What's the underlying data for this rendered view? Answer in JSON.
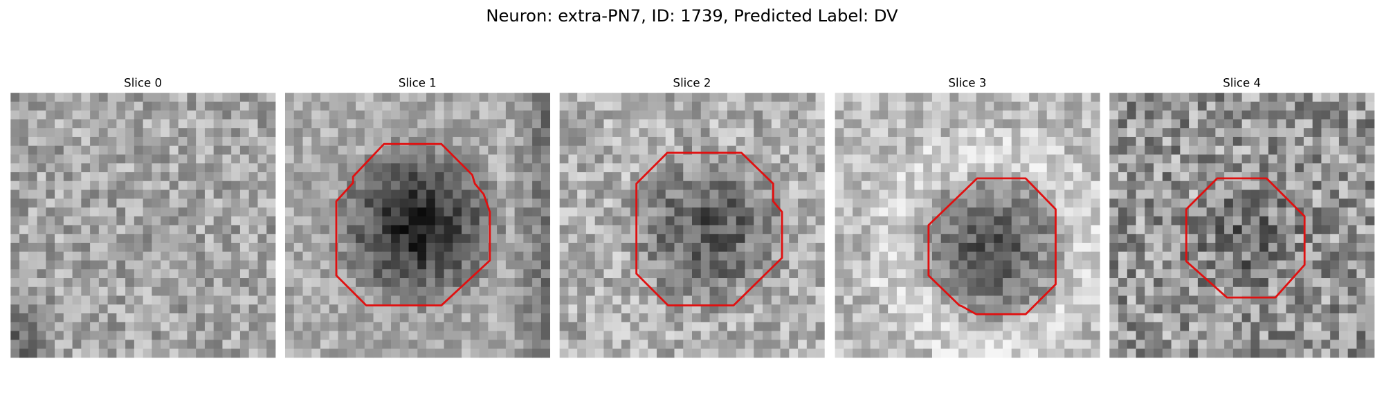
{
  "title": "Neuron: extra-PN7, ID: 1739, Predicted Label: DV",
  "panels": [
    {
      "title": "Slice 0"
    },
    {
      "title": "Slice 1"
    },
    {
      "title": "Slice 2"
    },
    {
      "title": "Slice 3"
    },
    {
      "title": "Slice 4"
    }
  ]
}
